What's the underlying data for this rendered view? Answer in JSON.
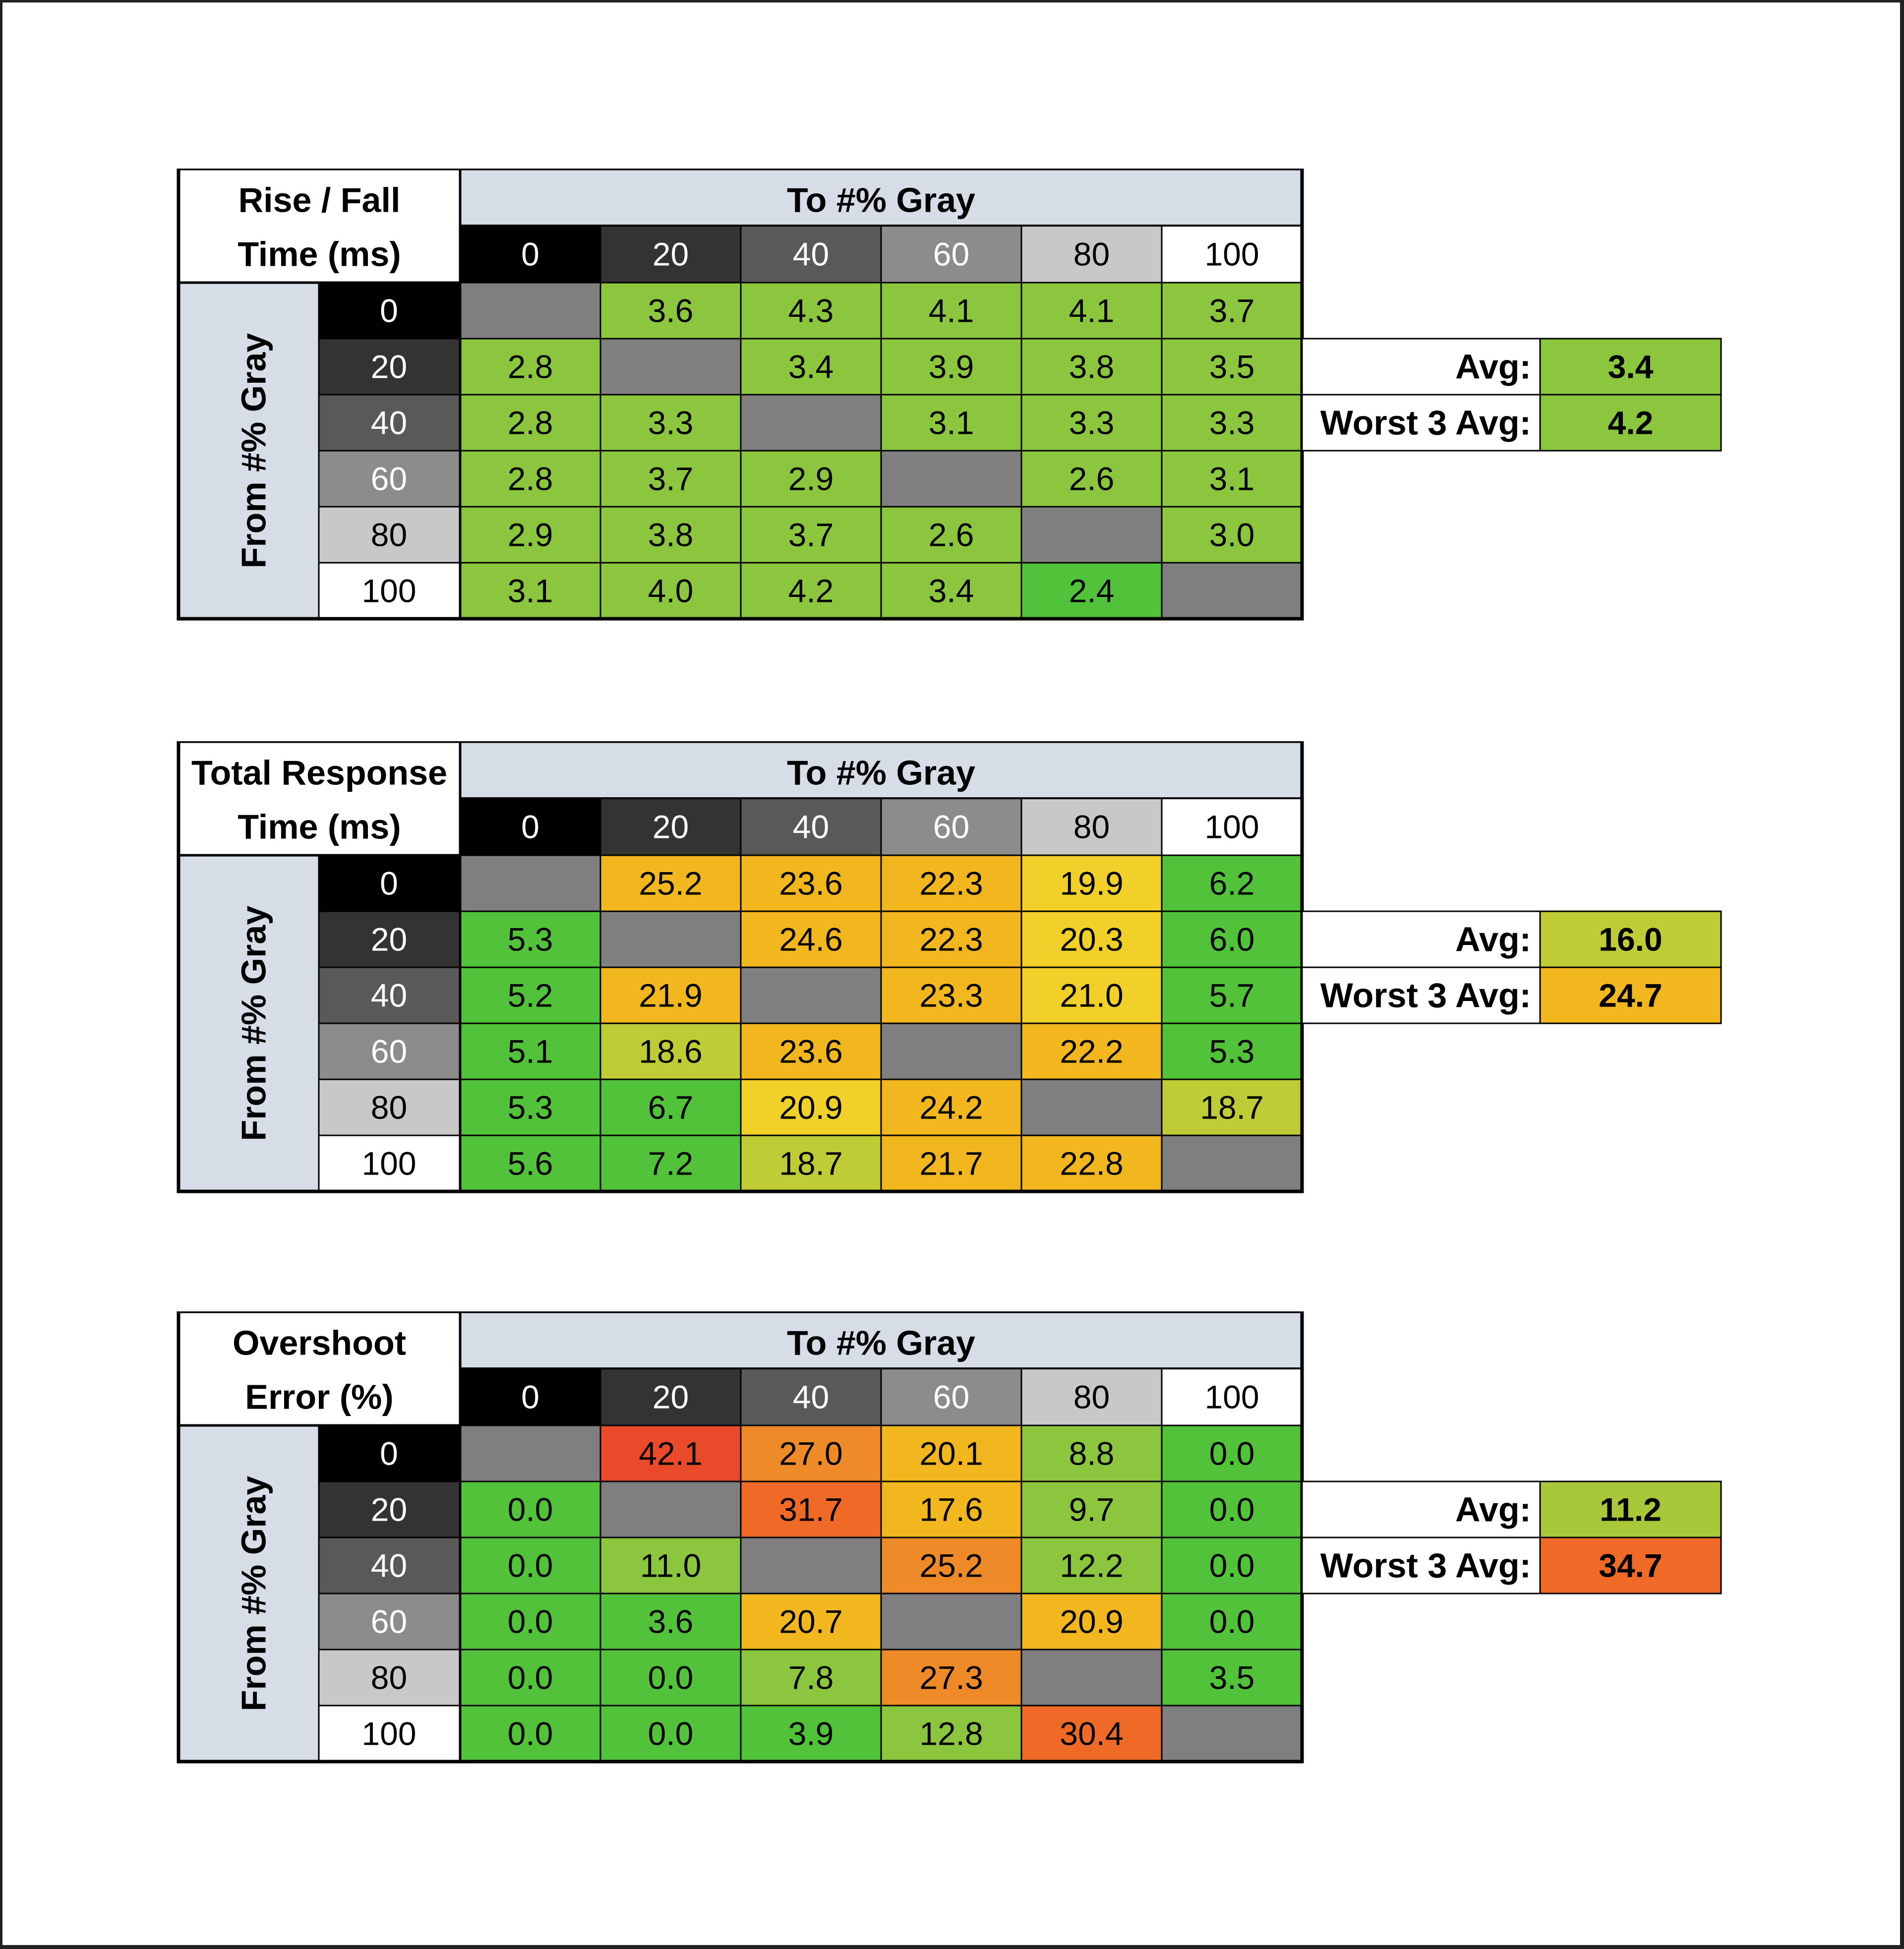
{
  "chart_data": [
    {
      "type": "heatmap",
      "title_lines": [
        "Rise / Fall",
        "Time (ms)"
      ],
      "col_header": "To #% Gray",
      "row_header": "From #% Gray",
      "gray_levels": [
        "0",
        "20",
        "40",
        "60",
        "80",
        "100"
      ],
      "values": [
        [
          null,
          3.6,
          4.3,
          4.1,
          4.1,
          3.7
        ],
        [
          2.8,
          null,
          3.4,
          3.9,
          3.8,
          3.5
        ],
        [
          2.8,
          3.3,
          null,
          3.1,
          3.3,
          3.3
        ],
        [
          2.8,
          3.7,
          2.9,
          null,
          2.6,
          3.1
        ],
        [
          2.9,
          3.8,
          3.7,
          2.6,
          null,
          3.0
        ],
        [
          3.1,
          4.0,
          4.2,
          3.4,
          2.4,
          null
        ]
      ],
      "summary": [
        {
          "label": "Avg:",
          "value": "3.4",
          "color": "#8cc63f"
        },
        {
          "label": "Worst 3 Avg:",
          "value": "4.2",
          "color": "#8cc63f"
        }
      ]
    },
    {
      "type": "heatmap",
      "title_lines": [
        "Total Response",
        "Time (ms)"
      ],
      "col_header": "To #% Gray",
      "row_header": "From #% Gray",
      "gray_levels": [
        "0",
        "20",
        "40",
        "60",
        "80",
        "100"
      ],
      "values": [
        [
          null,
          25.2,
          23.6,
          22.3,
          19.9,
          6.2
        ],
        [
          5.3,
          null,
          24.6,
          22.3,
          20.3,
          6.0
        ],
        [
          5.2,
          21.9,
          null,
          23.3,
          21.0,
          5.7
        ],
        [
          5.1,
          18.6,
          23.6,
          null,
          22.2,
          5.3
        ],
        [
          5.3,
          6.7,
          20.9,
          24.2,
          null,
          18.7
        ],
        [
          5.6,
          7.2,
          18.7,
          21.7,
          22.8,
          null
        ]
      ],
      "summary": [
        {
          "label": "Avg:",
          "value": "16.0",
          "color": "#c0cc35"
        },
        {
          "label": "Worst 3 Avg:",
          "value": "24.7",
          "color": "#f2b71e"
        }
      ]
    },
    {
      "type": "heatmap",
      "title_lines": [
        "Overshoot",
        "Error (%)"
      ],
      "col_header": "To #% Gray",
      "row_header": "From #% Gray",
      "gray_levels": [
        "0",
        "20",
        "40",
        "60",
        "80",
        "100"
      ],
      "values": [
        [
          null,
          42.1,
          27.0,
          20.1,
          8.8,
          0.0
        ],
        [
          0.0,
          null,
          31.7,
          17.6,
          9.7,
          0.0
        ],
        [
          0.0,
          11.0,
          null,
          25.2,
          12.2,
          0.0
        ],
        [
          0.0,
          3.6,
          20.7,
          null,
          20.9,
          0.0
        ],
        [
          0.0,
          0.0,
          7.8,
          27.3,
          null,
          3.5
        ],
        [
          0.0,
          0.0,
          3.9,
          12.8,
          30.4,
          null
        ]
      ],
      "summary": [
        {
          "label": "Avg:",
          "value": "11.2",
          "color": "#a8c83a"
        },
        {
          "label": "Worst 3 Avg:",
          "value": "34.7",
          "color": "#ef6a26"
        }
      ]
    }
  ],
  "colors": {
    "header_band": "#d6dde6",
    "empty_cell": "#7f7f7f",
    "gray_swatches": [
      "#000000",
      "#333333",
      "#595959",
      "#8c8c8c",
      "#c8c8c8",
      "#ffffff"
    ],
    "scale": [
      "#52c23a",
      "#8cc63f",
      "#c0cc35",
      "#f2d02a",
      "#f2b71e",
      "#ef8a28",
      "#ef6a26",
      "#e84a2a"
    ]
  }
}
